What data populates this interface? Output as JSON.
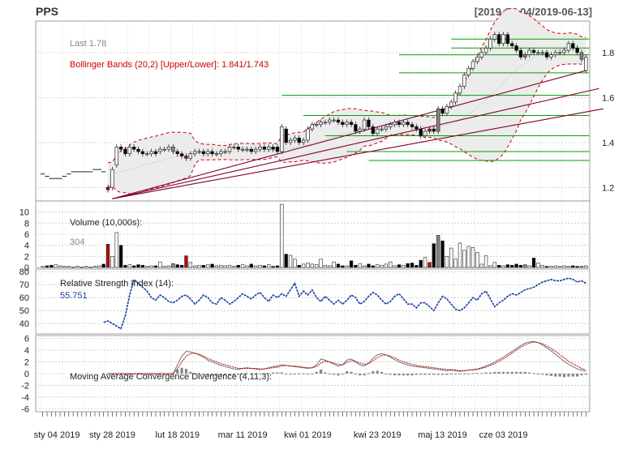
{
  "header": {
    "ticker": "PPS",
    "range": "[2019-01-04/2019-06-13]"
  },
  "colors": {
    "up": "#ffffff",
    "down": "#000000",
    "red_candle": "#c00000",
    "gray_candle": "#888888",
    "bollinger": "#d00000",
    "support": "#00a000",
    "trendline": "#800030",
    "rsi": "#1a3fa0",
    "macd_line": "#707070",
    "macd_signal": "#c00000",
    "grid": "#cccccc"
  },
  "chart_data": [
    {
      "type": "candlestick",
      "panel": "price",
      "texts": {
        "last": "Last 1.78",
        "bollinger": "Bollinger Bands (20,2) [Upper/Lower]: 1.841/1.743"
      },
      "ylim": [
        1.14,
        1.94
      ],
      "yticks": [
        "1.2",
        "1.4",
        "1.6",
        "1.8"
      ],
      "ytick_values": [
        1.2,
        1.4,
        1.6,
        1.8
      ],
      "close": [
        1.26,
        1.25,
        1.24,
        1.24,
        1.24,
        1.25,
        1.26,
        1.27,
        1.27,
        1.27,
        1.27,
        1.27,
        1.28,
        1.28,
        1.27,
        1.19,
        1.28,
        1.38,
        1.37,
        1.35,
        1.38,
        1.37,
        1.36,
        1.35,
        1.35,
        1.36,
        1.35,
        1.37,
        1.37,
        1.38,
        1.36,
        1.35,
        1.34,
        1.33,
        1.35,
        1.36,
        1.36,
        1.35,
        1.36,
        1.35,
        1.35,
        1.36,
        1.36,
        1.38,
        1.38,
        1.37,
        1.37,
        1.37,
        1.36,
        1.37,
        1.38,
        1.37,
        1.38,
        1.37,
        1.36,
        1.47,
        1.4,
        1.41,
        1.42,
        1.4,
        1.41,
        1.46,
        1.48,
        1.48,
        1.49,
        1.49,
        1.5,
        1.5,
        1.49,
        1.48,
        1.49,
        1.48,
        1.45,
        1.46,
        1.5,
        1.47,
        1.44,
        1.46,
        1.46,
        1.47,
        1.48,
        1.49,
        1.48,
        1.49,
        1.48,
        1.47,
        1.46,
        1.43,
        1.45,
        1.46,
        1.45,
        1.55,
        1.53,
        1.56,
        1.58,
        1.62,
        1.65,
        1.7,
        1.73,
        1.76,
        1.78,
        1.8,
        1.82,
        1.86,
        1.88,
        1.84,
        1.88,
        1.84,
        1.83,
        1.81,
        1.78,
        1.79,
        1.81,
        1.8,
        1.8,
        1.8,
        1.78,
        1.79,
        1.8,
        1.8,
        1.81,
        1.84,
        1.82,
        1.8,
        1.77,
        1.78
      ],
      "open": [
        1.26,
        1.26,
        1.25,
        1.24,
        1.24,
        1.24,
        1.25,
        1.26,
        1.27,
        1.27,
        1.27,
        1.27,
        1.27,
        1.28,
        1.28,
        1.2,
        1.2,
        1.3,
        1.38,
        1.37,
        1.35,
        1.38,
        1.37,
        1.36,
        1.35,
        1.35,
        1.36,
        1.36,
        1.37,
        1.37,
        1.38,
        1.36,
        1.35,
        1.34,
        1.33,
        1.35,
        1.36,
        1.36,
        1.35,
        1.36,
        1.35,
        1.35,
        1.36,
        1.36,
        1.38,
        1.38,
        1.37,
        1.37,
        1.37,
        1.36,
        1.37,
        1.38,
        1.37,
        1.38,
        1.38,
        1.36,
        1.46,
        1.4,
        1.41,
        1.42,
        1.4,
        1.41,
        1.46,
        1.48,
        1.48,
        1.49,
        1.49,
        1.5,
        1.5,
        1.49,
        1.48,
        1.49,
        1.48,
        1.45,
        1.46,
        1.5,
        1.47,
        1.44,
        1.46,
        1.46,
        1.47,
        1.48,
        1.49,
        1.48,
        1.49,
        1.48,
        1.47,
        1.46,
        1.43,
        1.45,
        1.46,
        1.45,
        1.55,
        1.53,
        1.56,
        1.58,
        1.62,
        1.65,
        1.7,
        1.73,
        1.76,
        1.78,
        1.8,
        1.82,
        1.86,
        1.88,
        1.84,
        1.88,
        1.84,
        1.83,
        1.81,
        1.78,
        1.79,
        1.81,
        1.8,
        1.8,
        1.8,
        1.78,
        1.79,
        1.8,
        1.8,
        1.81,
        1.84,
        1.82,
        1.8,
        1.72
      ],
      "support_levels": [
        1.86,
        1.82,
        1.79,
        1.71,
        1.61,
        1.52,
        1.43,
        1.36,
        1.32
      ],
      "volume": {
        "label": "Volume (10,000s):",
        "last": "304",
        "ylim": [
          0,
          12
        ],
        "yticks": [
          "0",
          "2",
          "4",
          "6",
          "8",
          "10"
        ],
        "ytick_values": [
          0,
          2,
          4,
          6,
          8,
          10
        ],
        "values": [
          0.2,
          0.3,
          0.4,
          0.5,
          0.3,
          0.2,
          0.2,
          0.1,
          0.2,
          0.1,
          0.2,
          0.1,
          0.2,
          0.3,
          0.6,
          4.2,
          2.0,
          6.3,
          4.0,
          0.4,
          0.5,
          0.3,
          0.5,
          0.4,
          0.2,
          0.3,
          0.3,
          1.0,
          0.2,
          0.3,
          0.7,
          0.5,
          0.4,
          2.1,
          0.9,
          0.3,
          0.4,
          0.4,
          0.5,
          0.6,
          0.3,
          0.4,
          0.3,
          0.4,
          0.2,
          0.4,
          0.5,
          0.3,
          0.6,
          0.3,
          0.4,
          0.3,
          0.5,
          0.2,
          0.3,
          11.4,
          2.4,
          2.2,
          1.5,
          0.4,
          0.6,
          0.8,
          0.6,
          0.5,
          1.5,
          0.4,
          0.3,
          1.0,
          0.6,
          0.3,
          0.3,
          1.2,
          0.4,
          0.7,
          0.3,
          0.6,
          0.3,
          0.5,
          0.4,
          0.6,
          1.0,
          0.3,
          0.5,
          0.4,
          0.7,
          0.8,
          0.4,
          1.3,
          1.8,
          0.9,
          4.3,
          5.8,
          4.8,
          2.0,
          3.5,
          1.5,
          4.4,
          3.1,
          3.8,
          3.6,
          2.7,
          0.6,
          2.1,
          0.3,
          0.9,
          0.4,
          0.3,
          0.5,
          0.4,
          0.6,
          0.4,
          0.5,
          0.3,
          1.7,
          0.8,
          0.4,
          0.2,
          0.2,
          0.3,
          0.2,
          0.3,
          0.2,
          0.3,
          0.2,
          0.2,
          0.3
        ]
      },
      "rsi": {
        "label": "Relative Strength Index (14):",
        "last": "55.751",
        "ylim": [
          32,
          82
        ],
        "yticks": [
          "40",
          "50",
          "60",
          "70",
          "80"
        ],
        "ytick_values": [
          40,
          50,
          60,
          70,
          80
        ],
        "values": [
          41,
          42,
          40,
          38,
          36,
          46,
          62,
          74,
          71,
          68,
          65,
          60,
          58,
          62,
          60,
          57,
          56,
          58,
          61,
          62,
          59,
          55,
          58,
          62,
          60,
          56,
          55,
          60,
          58,
          55,
          57,
          60,
          63,
          61,
          59,
          62,
          64,
          60,
          57,
          62,
          60,
          63,
          61,
          66,
          71,
          61,
          65,
          62,
          66,
          60,
          57,
          61,
          58,
          55,
          58,
          55,
          58,
          62,
          60,
          55,
          57,
          61,
          64,
          62,
          58,
          55,
          57,
          61,
          63,
          59,
          55,
          55,
          52,
          56,
          56,
          53,
          50,
          56,
          61,
          59,
          55,
          51,
          50,
          52,
          56,
          60,
          58,
          63,
          65,
          59,
          53,
          56,
          58,
          61,
          63,
          62,
          64,
          66,
          67,
          68,
          70,
          72,
          73,
          74,
          73,
          73,
          74,
          75,
          74,
          72,
          73,
          71,
          70,
          69,
          70,
          71,
          69,
          66,
          67,
          68,
          66,
          64,
          65,
          67,
          65,
          60,
          57,
          56,
          56
        ]
      },
      "macd": {
        "label": "Moving Average Convergence Divergence (4,11,3):",
        "ylim": [
          -6.5,
          6.5
        ],
        "yticks": [
          "-6",
          "-4",
          "-2",
          "0",
          "2",
          "4",
          "6"
        ],
        "ytick_values": [
          -6,
          -4,
          -2,
          0,
          2,
          4,
          6
        ],
        "line": [
          0,
          0,
          0,
          0,
          0,
          0,
          0,
          0,
          0,
          0,
          0,
          0,
          0,
          0,
          0,
          0,
          1.5,
          3.0,
          3.8,
          3.7,
          3.5,
          3.2,
          2.8,
          2.3,
          2.0,
          1.7,
          1.4,
          1.2,
          1.0,
          0.8,
          0.7,
          0.9,
          1.0,
          0.9,
          0.8,
          0.7,
          0.8,
          1.0,
          1.2,
          1.3,
          1.5,
          1.4,
          1.3,
          1.2,
          1.1,
          1.0,
          0.9,
          1.0,
          1.5,
          2.5,
          2.3,
          2.0,
          1.6,
          1.3,
          1.5,
          2.3,
          2.5,
          2.0,
          1.5,
          1.3,
          1.8,
          2.6,
          3.2,
          3.4,
          3.2,
          2.8,
          2.4,
          2.0,
          1.7,
          1.5,
          1.3,
          1.2,
          1.1,
          1.0,
          0.9,
          0.8,
          0.7,
          0.6,
          0.5,
          0.6,
          0.5,
          0.4,
          0.5,
          0.6,
          0.7,
          0.8,
          1.0,
          1.3,
          1.6,
          2.0,
          2.4,
          2.8,
          3.3,
          3.8,
          4.3,
          4.8,
          5.2,
          5.4,
          5.5,
          5.3,
          4.9,
          4.4,
          3.9,
          3.3,
          2.7,
          2.1,
          1.6,
          1.2,
          0.8,
          0.6,
          0.4,
          0.2,
          0.1,
          0.0,
          0.1,
          0.0,
          -0.1,
          0.1,
          0.0
        ],
        "signal": [
          0,
          0,
          0,
          0,
          0,
          0,
          0,
          0,
          0,
          0,
          0,
          0,
          0,
          0,
          0,
          0,
          0.8,
          2.0,
          3.0,
          3.4,
          3.5,
          3.3,
          3.0,
          2.6,
          2.3,
          2.0,
          1.7,
          1.5,
          1.3,
          1.1,
          0.9,
          0.9,
          0.9,
          0.9,
          0.9,
          0.8,
          0.8,
          0.9,
          1.0,
          1.1,
          1.3,
          1.4,
          1.3,
          1.3,
          1.2,
          1.1,
          1.0,
          1.0,
          1.2,
          1.8,
          2.1,
          2.0,
          1.8,
          1.6,
          1.5,
          1.9,
          2.2,
          2.1,
          1.8,
          1.6,
          1.7,
          2.2,
          2.7,
          3.1,
          3.2,
          3.0,
          2.7,
          2.3,
          2.0,
          1.8,
          1.6,
          1.4,
          1.3,
          1.2,
          1.1,
          1.0,
          0.9,
          0.8,
          0.7,
          0.7,
          0.6,
          0.5,
          0.5,
          0.6,
          0.6,
          0.7,
          0.9,
          1.1,
          1.4,
          1.7,
          2.1,
          2.5,
          3.0,
          3.5,
          4.0,
          4.5,
          4.9,
          5.2,
          5.4,
          5.3,
          5.1,
          4.7,
          4.3,
          3.8,
          3.2,
          2.7,
          2.1,
          1.7,
          1.3,
          0.9,
          0.6,
          0.4,
          0.2,
          0.1,
          0.1,
          0.0,
          0.0,
          0.0,
          0.0
        ],
        "hist": [
          0,
          0,
          0,
          0,
          0,
          0,
          0,
          0,
          0,
          0,
          0,
          0,
          0,
          0,
          0,
          0,
          0.7,
          1.0,
          0.8,
          0.3,
          0.0,
          -0.1,
          -0.2,
          -0.3,
          -0.3,
          -0.3,
          -0.3,
          -0.3,
          -0.3,
          -0.3,
          -0.2,
          0.0,
          0.1,
          0.0,
          -0.1,
          -0.1,
          0.0,
          0.1,
          0.2,
          0.2,
          0.2,
          0.0,
          0.0,
          -0.1,
          -0.1,
          -0.1,
          -0.1,
          0.0,
          0.3,
          0.7,
          0.2,
          0.0,
          -0.2,
          -0.3,
          0.0,
          0.4,
          0.3,
          -0.1,
          -0.3,
          -0.3,
          0.1,
          0.4,
          0.5,
          0.3,
          0.0,
          -0.2,
          -0.3,
          -0.3,
          -0.3,
          -0.3,
          -0.3,
          -0.2,
          -0.2,
          -0.2,
          -0.2,
          -0.2,
          -0.2,
          -0.2,
          -0.2,
          -0.1,
          -0.1,
          -0.1,
          0.0,
          0.0,
          0.1,
          0.1,
          0.1,
          0.2,
          0.2,
          0.3,
          0.3,
          0.3,
          0.3,
          0.3,
          0.3,
          0.3,
          0.3,
          0.2,
          0.1,
          0.0,
          -0.2,
          -0.3,
          -0.4,
          -0.5,
          -0.5,
          -0.6,
          -0.5,
          -0.5,
          -0.5,
          -0.3,
          -0.2,
          -0.2,
          -0.1,
          -0.1,
          0.0,
          0.0,
          -0.1,
          0.1,
          0.0
        ]
      },
      "x_tick_labels": [
        "sty 04 2019",
        "sty 28 2019",
        "lut 18 2019",
        "mar 11 2019",
        "kwi 01 2019",
        "kwi 23 2019",
        "maj 13 2019",
        "cze 03 2019"
      ]
    }
  ]
}
